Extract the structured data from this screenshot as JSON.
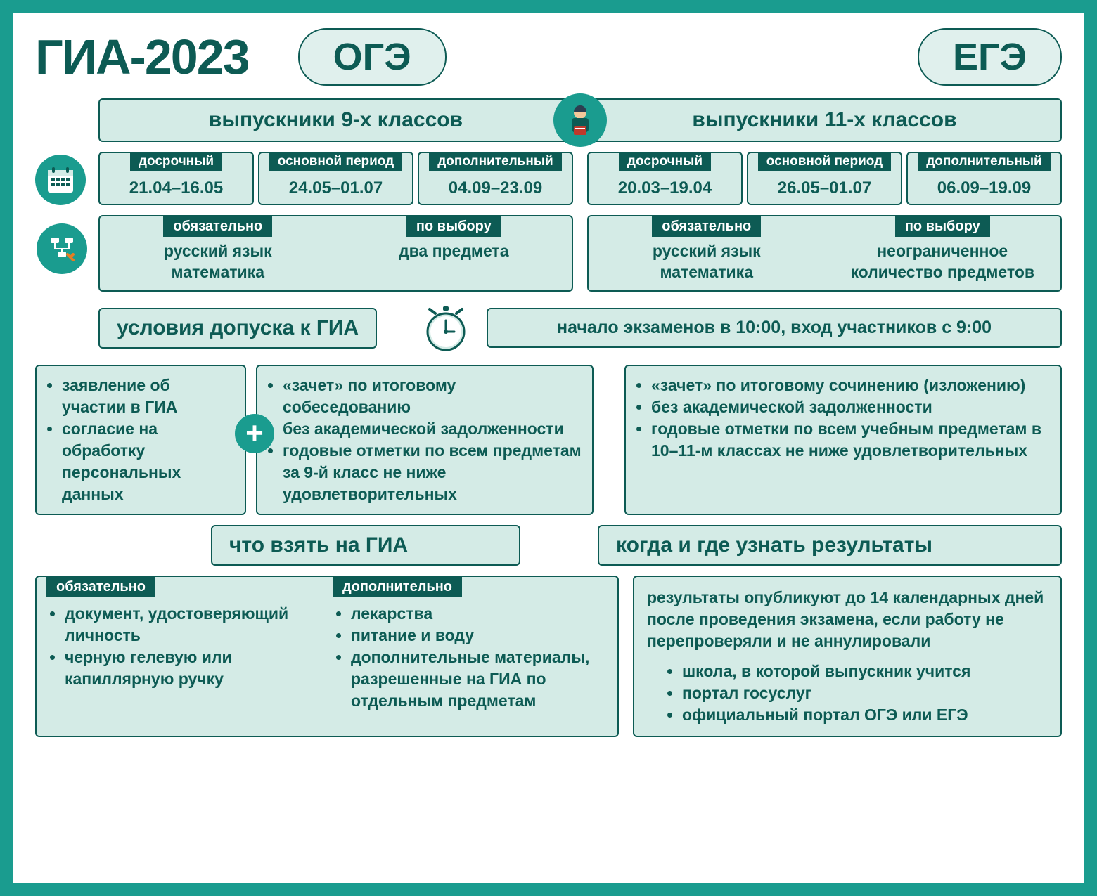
{
  "colors": {
    "teal_dark": "#0d5b54",
    "teal_main": "#1a9c8f",
    "teal_light": "#d4ebe6",
    "white": "#ffffff"
  },
  "typography": {
    "title_size": 70,
    "pill_size": 54,
    "box_header_size": 30,
    "body_size": 23,
    "small_label_size": 20,
    "date_size": 24
  },
  "header": {
    "title": "ГИА-2023",
    "oge": "ОГЭ",
    "ege": "ЕГЭ"
  },
  "graduates": {
    "oge": "выпускники 9-х классов",
    "ege": "выпускники 11-х классов"
  },
  "periods": {
    "labels": {
      "early": "досрочный",
      "main": "основной период",
      "extra": "дополнительный"
    },
    "oge": {
      "early": "21.04–16.05",
      "main": "24.05–01.07",
      "extra": "04.09–23.09"
    },
    "ege": {
      "early": "20.03–19.04",
      "main": "26.05–01.07",
      "extra": "06.09–19.09"
    }
  },
  "subjects": {
    "labels": {
      "required": "обязательно",
      "optional": "по выбору"
    },
    "oge": {
      "required": "русский язык\nматематика",
      "optional": "два предмета"
    },
    "ege": {
      "required": "русский язык\nматематика",
      "optional": "неограниченное количество предметов"
    }
  },
  "conditions": {
    "header": "условия допуска к ГИА",
    "common": [
      "заявление об участии в ГИА",
      "согласие на обработку персональных данных"
    ],
    "oge": [
      "«зачет» по итоговому собеседованию",
      "без академической задолженности",
      "годовые отметки по всем предметам за 9-й класс не ниже удовлетворительных"
    ],
    "ege": [
      "«зачет» по итоговому сочинению (изложению)",
      "без академической задолженности",
      "годовые отметки по всем учебным предметам в 10–11-м классах не ниже удовлетворительных"
    ]
  },
  "time_info": "начало экзаменов в 10:00, вход участников с 9:00",
  "bring": {
    "header": "что взять на ГИА",
    "required_label": "обязательно",
    "optional_label": "дополнительно",
    "required": [
      "документ, удостоверяющий личность",
      "черную гелевую или капиллярную ручку"
    ],
    "optional": [
      "лекарства",
      "питание и воду",
      "дополнительные материалы, разрешенные на ГИА по отдельным предметам"
    ]
  },
  "results": {
    "header": "когда и где узнать результаты",
    "text": "результаты опубликуют до 14 календарных дней после проведения экзамена, если работу не перепроверяли и не аннулировали",
    "sources": [
      "школа, в которой выпускник учится",
      "портал госуслуг",
      "официальный портал ОГЭ или ЕГЭ"
    ]
  }
}
